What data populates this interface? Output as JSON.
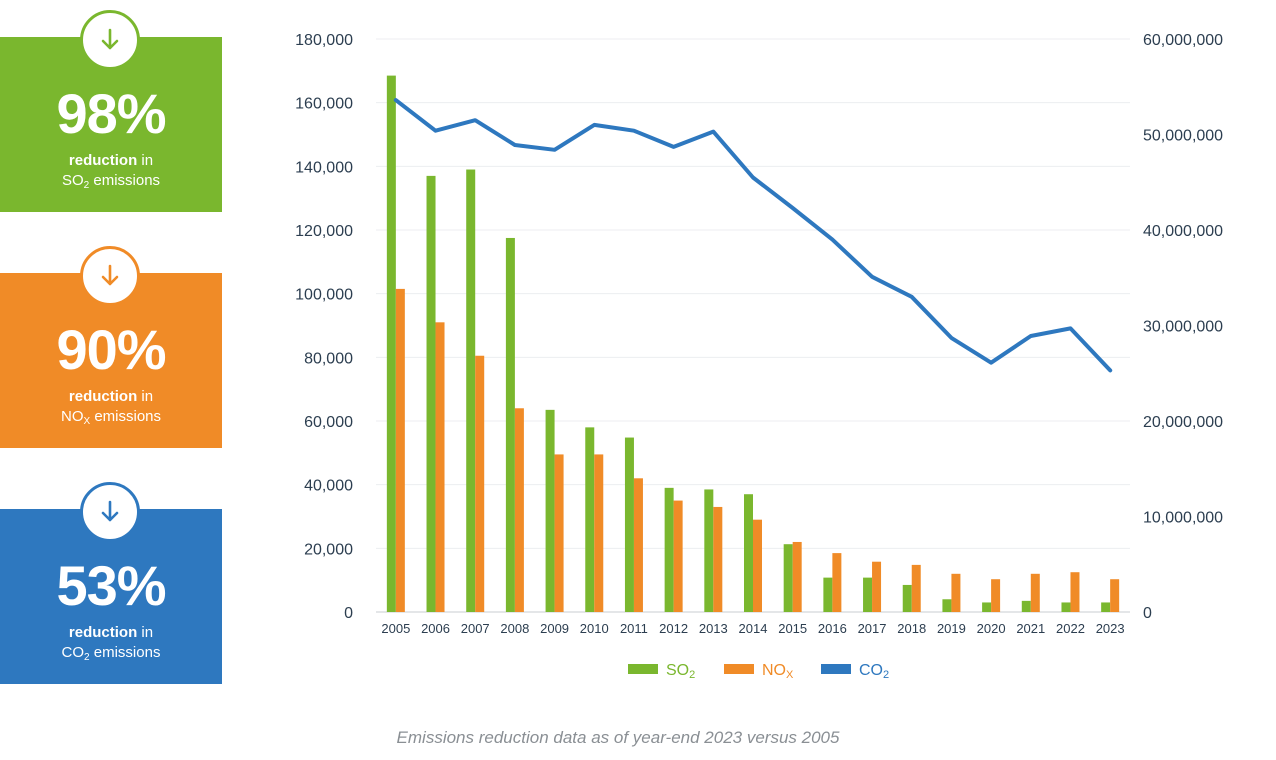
{
  "stats": [
    {
      "percent": "98%",
      "bold": "reduction",
      "after": " in",
      "pollutant": "SO",
      "sub": "2",
      "rest": " emissions",
      "color": "#7ab72e",
      "icon": "arrow-down-icon"
    },
    {
      "percent": "90%",
      "bold": "reduction",
      "after": " in",
      "pollutant": "NO",
      "sub": "X",
      "rest": " emissions",
      "color": "#f08b27",
      "icon": "arrow-down-icon"
    },
    {
      "percent": "53%",
      "bold": "reduction",
      "after": " in",
      "pollutant": "CO",
      "sub": "2",
      "rest": " emissions",
      "color": "#2e78bf",
      "icon": "arrow-down-icon"
    }
  ],
  "caption": "Emissions reduction data as of year-end 2023 versus 2005",
  "chart_data": {
    "type": "bar",
    "categories": [
      "2005",
      "2006",
      "2007",
      "2008",
      "2009",
      "2010",
      "2011",
      "2012",
      "2013",
      "2014",
      "2015",
      "2016",
      "2017",
      "2018",
      "2019",
      "2020",
      "2021",
      "2022",
      "2023"
    ],
    "series": [
      {
        "name": "SO2",
        "label": "SO",
        "sub": "2",
        "type": "bar",
        "axis": "left",
        "color": "#7ab72e",
        "values": [
          168500,
          137000,
          139000,
          117500,
          63500,
          58000,
          54800,
          39000,
          38500,
          37000,
          21300,
          10800,
          10800,
          8500,
          4000,
          3000,
          3500,
          3000,
          3000
        ]
      },
      {
        "name": "NOx",
        "label": "NO",
        "sub": "X",
        "type": "bar",
        "axis": "left",
        "color": "#f08b27",
        "values": [
          101500,
          91000,
          80500,
          64000,
          49500,
          49500,
          42000,
          35000,
          33000,
          29000,
          22000,
          18500,
          15800,
          14800,
          12000,
          10300,
          12000,
          12500,
          10300
        ]
      },
      {
        "name": "CO2",
        "label": "CO",
        "sub": "2",
        "type": "line",
        "axis": "right",
        "color": "#2e78bf",
        "values": [
          53600000,
          50400000,
          51500000,
          48900000,
          48400000,
          51000000,
          50400000,
          48700000,
          50300000,
          45500000,
          42300000,
          39000000,
          35100000,
          33000000,
          28700000,
          26100000,
          28900000,
          29700000,
          25300000
        ]
      }
    ],
    "y_left": {
      "min": 0,
      "max": 180000,
      "ticks": [
        "0",
        "20,000",
        "40,000",
        "60,000",
        "80,000",
        "100,000",
        "120,000",
        "140,000",
        "160,000",
        "180,000"
      ]
    },
    "y_right": {
      "min": 0,
      "max": 60000000,
      "ticks": [
        "0",
        "10,000,000",
        "20,000,000",
        "30,000,000",
        "40,000,000",
        "50,000,000",
        "60,000,000"
      ]
    },
    "title": "",
    "xlabel": "",
    "ylabel": "",
    "legend": "bottom",
    "grid": true
  }
}
